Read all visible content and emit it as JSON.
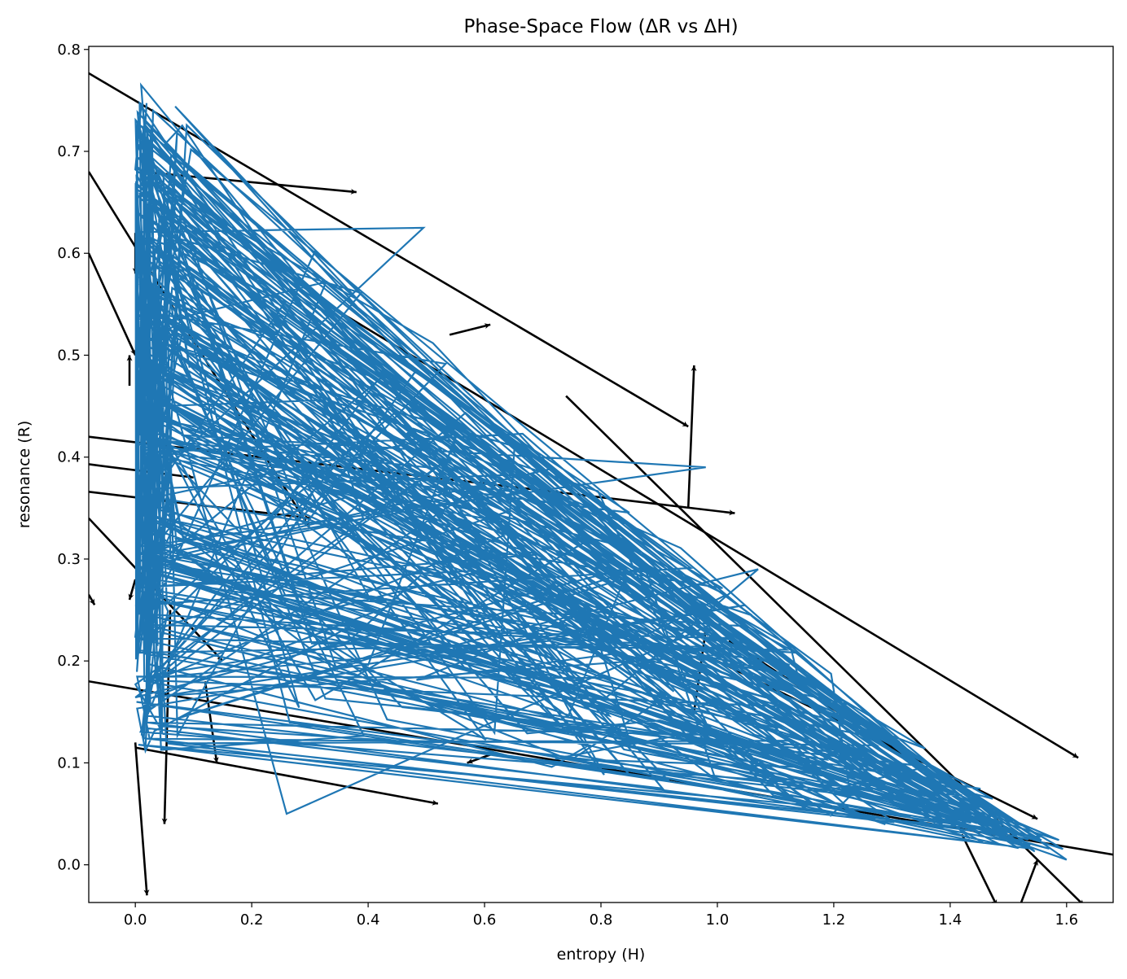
{
  "chart_data": {
    "type": "line",
    "title": "Phase-Space Flow (ΔR vs ΔH)",
    "xlabel": "entropy (H)",
    "ylabel": "resonance (R)",
    "xlim": [
      -0.08,
      1.68
    ],
    "ylim": [
      -0.037,
      0.803
    ],
    "x_ticks": [
      "0.0",
      "0.2",
      "0.4",
      "0.6",
      "0.8",
      "1.0",
      "1.2",
      "1.4",
      "1.6"
    ],
    "y_ticks": [
      "0.0",
      "0.1",
      "0.2",
      "0.3",
      "0.4",
      "0.5",
      "0.6",
      "0.7",
      "0.8"
    ],
    "grid": false,
    "legend": "none",
    "colors": {
      "trajectory": "#1f77b4",
      "quiver": "#000000"
    },
    "quiver": [
      {
        "x0": -0.09,
        "y0": 0.78,
        "x1": 0.95,
        "y1": 0.43
      },
      {
        "x0": 0.01,
        "y0": 0.68,
        "x1": 0.38,
        "y1": 0.66
      },
      {
        "x0": -0.09,
        "y0": 0.69,
        "x1": -0.08,
        "y1": 0.69
      },
      {
        "x0": -0.08,
        "y0": 0.68,
        "x1": 0.3,
        "y1": 0.33
      },
      {
        "x0": -0.08,
        "y0": 0.6,
        "x1": 0.0,
        "y1": 0.5
      },
      {
        "x0": -0.08,
        "y0": 0.42,
        "x1": 1.03,
        "y1": 0.345
      },
      {
        "x0": -0.08,
        "y0": 0.393,
        "x1": 0.1,
        "y1": 0.38
      },
      {
        "x0": -0.08,
        "y0": 0.366,
        "x1": 0.3,
        "y1": 0.34
      },
      {
        "x0": -0.08,
        "y0": 0.34,
        "x1": 0.15,
        "y1": 0.2
      },
      {
        "x0": -0.08,
        "y0": 0.265,
        "x1": -0.07,
        "y1": 0.255
      },
      {
        "x0": -0.08,
        "y0": 0.18,
        "x1": 1.7,
        "y1": 0.008
      },
      {
        "x0": 0.0,
        "y0": 0.115,
        "x1": 0.52,
        "y1": 0.06
      },
      {
        "x0": 0.0,
        "y0": 0.12,
        "x1": 0.02,
        "y1": -0.03
      },
      {
        "x0": 0.06,
        "y0": 0.25,
        "x1": 0.05,
        "y1": 0.04
      },
      {
        "x0": 0.12,
        "y0": 0.18,
        "x1": 0.14,
        "y1": 0.1
      },
      {
        "x0": 0.3,
        "y0": 0.56,
        "x1": 1.62,
        "y1": 0.105
      },
      {
        "x0": 0.74,
        "y0": 0.46,
        "x1": 1.63,
        "y1": -0.04
      },
      {
        "x0": 1.0,
        "y0": 0.2,
        "x1": 1.55,
        "y1": 0.045
      },
      {
        "x0": 0.54,
        "y0": 0.52,
        "x1": 0.61,
        "y1": 0.53
      },
      {
        "x0": 0.95,
        "y0": 0.35,
        "x1": 0.96,
        "y1": 0.49
      },
      {
        "x0": 1.42,
        "y0": 0.03,
        "x1": 1.48,
        "y1": -0.04
      },
      {
        "x0": 1.52,
        "y0": -0.04,
        "x1": 1.55,
        "y1": 0.005
      },
      {
        "x0": 1.02,
        "y0": 0.22,
        "x1": 1.34,
        "y1": 0.1
      },
      {
        "x0": 0.96,
        "y0": 0.15,
        "x1": 0.98,
        "y1": 0.23
      },
      {
        "x0": 0.62,
        "y0": 0.11,
        "x1": 0.57,
        "y1": 0.1
      },
      {
        "x0": 0.0,
        "y0": 0.62,
        "x1": 0.0,
        "y1": 0.58
      },
      {
        "x0": 0.0,
        "y0": 0.28,
        "x1": -0.01,
        "y1": 0.26
      },
      {
        "x0": -0.01,
        "y0": 0.47,
        "x1": -0.01,
        "y1": 0.5
      }
    ]
  }
}
